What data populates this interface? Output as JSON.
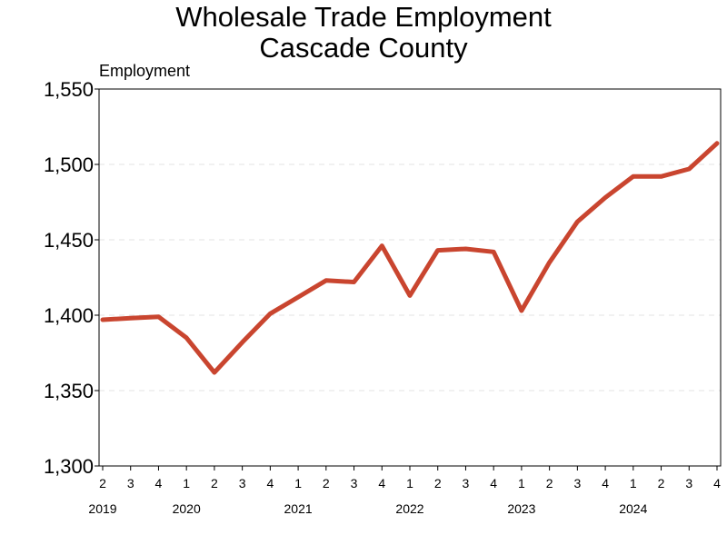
{
  "chart_data": {
    "type": "line",
    "title": [
      "Wholesale Trade Employment",
      "Cascade County"
    ],
    "ylabel": "Employment",
    "xlabel": "",
    "ylim": [
      1300,
      1550
    ],
    "yticks": [
      1300,
      1350,
      1400,
      1450,
      1500,
      1550
    ],
    "ytick_labels": [
      "1,300",
      "1,350",
      "1,400",
      "1,450",
      "1,500",
      "1,550"
    ],
    "grid": "horizontal-dashed",
    "line_color": "#c9452f",
    "x": [
      "2019 Q2",
      "2019 Q3",
      "2019 Q4",
      "2020 Q1",
      "2020 Q2",
      "2020 Q3",
      "2020 Q4",
      "2021 Q1",
      "2021 Q2",
      "2021 Q3",
      "2021 Q4",
      "2022 Q1",
      "2022 Q2",
      "2022 Q3",
      "2022 Q4",
      "2023 Q1",
      "2023 Q2",
      "2023 Q3",
      "2023 Q4",
      "2024 Q1",
      "2024 Q2",
      "2024 Q3",
      "2024 Q4"
    ],
    "quarter_labels": [
      "2",
      "3",
      "4",
      "1",
      "2",
      "3",
      "4",
      "1",
      "2",
      "3",
      "4",
      "1",
      "2",
      "3",
      "4",
      "1",
      "2",
      "3",
      "4",
      "1",
      "2",
      "3",
      "4"
    ],
    "year_labels": [
      {
        "label": "2019",
        "quarter_index": 0
      },
      {
        "label": "2020",
        "quarter_index": 3
      },
      {
        "label": "2021",
        "quarter_index": 7
      },
      {
        "label": "2022",
        "quarter_index": 11
      },
      {
        "label": "2023",
        "quarter_index": 15
      },
      {
        "label": "2024",
        "quarter_index": 19
      }
    ],
    "series": [
      {
        "values": [
          1397,
          1398,
          1399,
          1385,
          1362,
          1382,
          1401,
          1412,
          1423,
          1422,
          1446,
          1413,
          1443,
          1444,
          1442,
          1403,
          1435,
          1462,
          1478,
          1492,
          1492,
          1497,
          1514
        ]
      }
    ]
  }
}
